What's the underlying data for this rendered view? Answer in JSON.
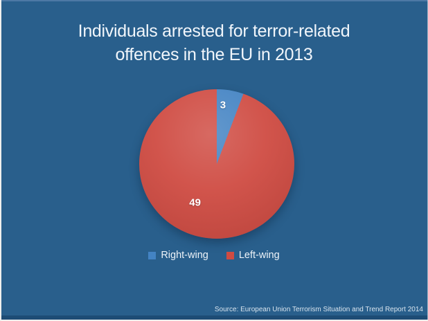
{
  "slide": {
    "title_line1": "Individuals arrested for terror-related",
    "title_line2": "offences in the EU in 2013",
    "source": "Source: European Union Terrorism Situation and Trend Report 2014"
  },
  "colors": {
    "background": "#295f8c",
    "footer_bar": "#1e4c75",
    "top_edge": "#4d79a5",
    "frame_edge": "#f0f0ee",
    "title_text": "#f1f6fb",
    "label_text": "#ffffff"
  },
  "chart_data": {
    "type": "pie",
    "title": "Individuals arrested for terror-related offences in the EU in 2013",
    "categories": [
      "Right-wing",
      "Left-wing"
    ],
    "values": [
      3,
      49
    ],
    "data_labels": [
      "3",
      "49"
    ],
    "colors": [
      "#4383c3",
      "#cf4b42"
    ],
    "start_angle_deg": 0,
    "direction": "clockwise",
    "legend_position": "bottom",
    "label_pos_pct": [
      [
        54,
        10.5
      ],
      [
        36,
        76
      ]
    ],
    "source": "European Union Terrorism Situation and Trend Report 2014"
  }
}
